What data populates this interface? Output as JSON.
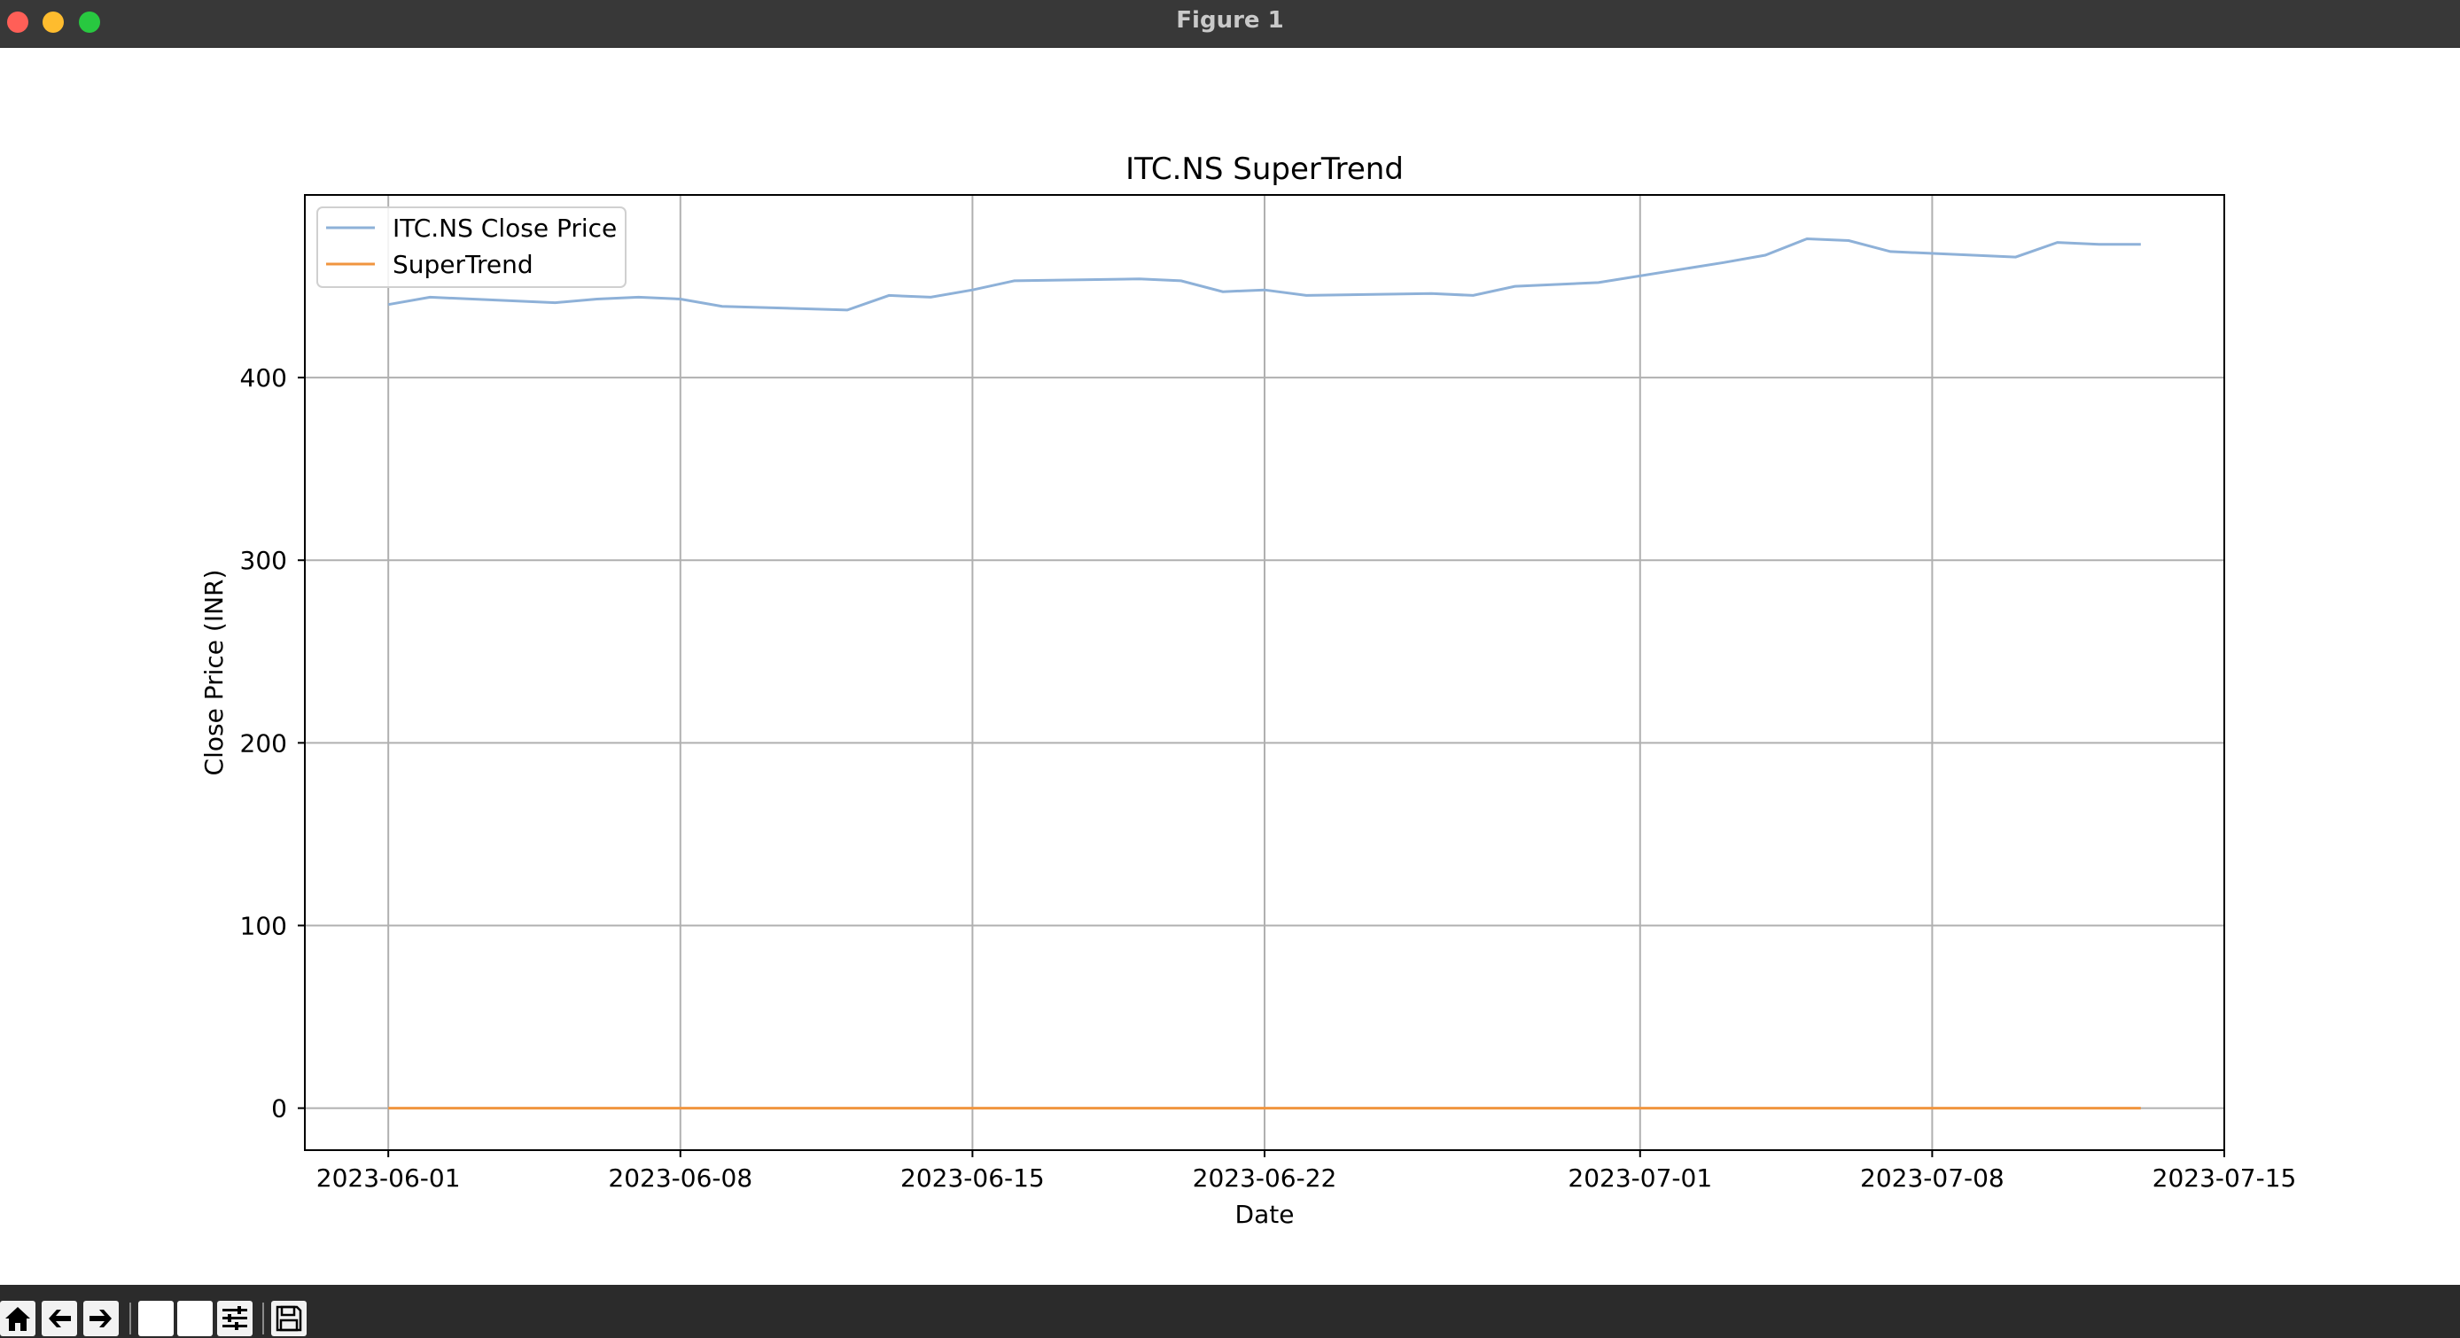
{
  "window": {
    "title": "Figure 1"
  },
  "toolbar": {
    "buttons": [
      "home-icon",
      "back-arrow-icon",
      "forward-arrow-icon",
      "pan-icon",
      "zoom-icon",
      "configure-subplots-icon",
      "save-icon"
    ]
  },
  "chart_data": {
    "type": "line",
    "title": "ITC.NS SuperTrend",
    "xlabel": "Date",
    "ylabel": "Close Price (INR)",
    "x_ticks": [
      "2023-06-01",
      "2023-06-08",
      "2023-06-15",
      "2023-06-22",
      "2023-07-01",
      "2023-07-08",
      "2023-07-15"
    ],
    "y_ticks": [
      0,
      100,
      200,
      300,
      400
    ],
    "xlim": [
      "2023-05-30",
      "2023-07-15"
    ],
    "ylim": [
      -23,
      500
    ],
    "grid": true,
    "legend_position": "top-left",
    "series": [
      {
        "name": "ITC.NS Close Price",
        "color": "#8eb1d8",
        "points": [
          [
            "2023-06-01",
            440
          ],
          [
            "2023-06-02",
            444
          ],
          [
            "2023-06-05",
            441
          ],
          [
            "2023-06-06",
            443
          ],
          [
            "2023-06-07",
            444
          ],
          [
            "2023-06-08",
            443
          ],
          [
            "2023-06-09",
            439
          ],
          [
            "2023-06-12",
            437
          ],
          [
            "2023-06-13",
            445
          ],
          [
            "2023-06-14",
            444
          ],
          [
            "2023-06-15",
            448
          ],
          [
            "2023-06-16",
            453
          ],
          [
            "2023-06-19",
            454
          ],
          [
            "2023-06-20",
            453
          ],
          [
            "2023-06-21",
            447
          ],
          [
            "2023-06-22",
            448
          ],
          [
            "2023-06-23",
            445
          ],
          [
            "2023-06-26",
            446
          ],
          [
            "2023-06-27",
            445
          ],
          [
            "2023-06-28",
            450
          ],
          [
            "2023-06-30",
            452
          ],
          [
            "2023-07-03",
            463
          ],
          [
            "2023-07-04",
            467
          ],
          [
            "2023-07-05",
            476
          ],
          [
            "2023-07-06",
            475
          ],
          [
            "2023-07-07",
            469
          ],
          [
            "2023-07-10",
            466
          ],
          [
            "2023-07-11",
            474
          ],
          [
            "2023-07-12",
            473
          ],
          [
            "2023-07-13",
            473
          ]
        ]
      },
      {
        "name": "SuperTrend",
        "color": "#f0953f",
        "points": [
          [
            "2023-06-01",
            0
          ],
          [
            "2023-07-13",
            0
          ]
        ]
      }
    ]
  }
}
